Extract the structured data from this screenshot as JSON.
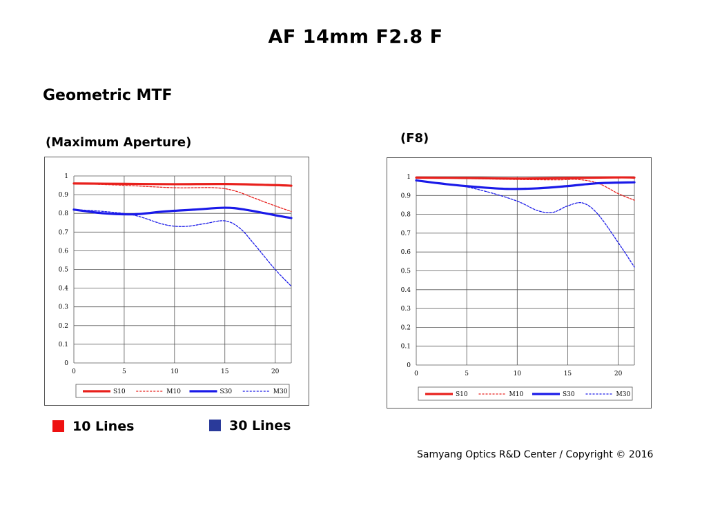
{
  "title": "AF 14mm F2.8 F",
  "subtitle": "Geometric MTF",
  "chart_data": [
    {
      "type": "line",
      "title": "(Maximum Aperture)",
      "xlim": [
        0,
        21.6
      ],
      "ylim": [
        0,
        1
      ],
      "xticks": [
        0,
        5,
        10,
        15,
        20
      ],
      "yticks": [
        "0",
        "0.1",
        "0.2",
        "0.3",
        "0.4",
        "0.5",
        "0.6",
        "0.7",
        "0.8",
        "0.9",
        "1"
      ],
      "grid": true,
      "legend_position": "bottom",
      "series": [
        {
          "name": "S10",
          "color": "#e8201c",
          "style": "solid",
          "x": [
            0,
            5,
            10,
            15,
            20,
            21.6
          ],
          "y": [
            0.96,
            0.958,
            0.956,
            0.957,
            0.951,
            0.948
          ]
        },
        {
          "name": "M10",
          "color": "#e8201c",
          "style": "dashed",
          "x": [
            0,
            5,
            10,
            14,
            16,
            18,
            20,
            21.6
          ],
          "y": [
            0.96,
            0.95,
            0.937,
            0.937,
            0.92,
            0.88,
            0.84,
            0.81
          ]
        },
        {
          "name": "S30",
          "color": "#1a1ae8",
          "style": "solid",
          "x": [
            0,
            3,
            6,
            9,
            12,
            15,
            17,
            20,
            21.6
          ],
          "y": [
            0.82,
            0.8,
            0.795,
            0.81,
            0.82,
            0.83,
            0.82,
            0.79,
            0.775
          ]
        },
        {
          "name": "M30",
          "color": "#1a1ae8",
          "style": "dashed",
          "x": [
            0,
            3,
            6,
            9,
            11,
            13,
            15,
            16.5,
            18,
            20,
            21.6
          ],
          "y": [
            0.82,
            0.81,
            0.79,
            0.74,
            0.73,
            0.745,
            0.76,
            0.72,
            0.63,
            0.5,
            0.41
          ]
        }
      ]
    },
    {
      "type": "line",
      "title": "(F8)",
      "xlim": [
        0,
        21.6
      ],
      "ylim": [
        0,
        1
      ],
      "xticks": [
        0,
        5,
        10,
        15,
        20
      ],
      "yticks": [
        "0",
        "0.1",
        "0.2",
        "0.3",
        "0.4",
        "0.5",
        "0.6",
        "0.7",
        "0.8",
        "0.9",
        "1"
      ],
      "grid": true,
      "legend_position": "bottom",
      "series": [
        {
          "name": "S10",
          "color": "#e8201c",
          "style": "solid",
          "x": [
            0,
            5,
            10,
            15,
            20,
            21.6
          ],
          "y": [
            0.995,
            0.993,
            0.99,
            0.993,
            0.996,
            0.995
          ]
        },
        {
          "name": "M10",
          "color": "#e8201c",
          "style": "dashed",
          "x": [
            0,
            5,
            10,
            14,
            16,
            18,
            20,
            21.6
          ],
          "y": [
            0.995,
            0.99,
            0.985,
            0.983,
            0.985,
            0.965,
            0.91,
            0.875
          ]
        },
        {
          "name": "S30",
          "color": "#1a1ae8",
          "style": "solid",
          "x": [
            0,
            3,
            6,
            9,
            12,
            15,
            18,
            21.6
          ],
          "y": [
            0.98,
            0.96,
            0.945,
            0.935,
            0.938,
            0.95,
            0.965,
            0.97
          ]
        },
        {
          "name": "M30",
          "color": "#1a1ae8",
          "style": "dashed",
          "x": [
            0,
            4,
            7,
            10,
            12,
            13.5,
            15,
            16.5,
            18,
            20,
            21.6
          ],
          "y": [
            0.98,
            0.955,
            0.92,
            0.87,
            0.82,
            0.81,
            0.845,
            0.86,
            0.8,
            0.65,
            0.52
          ]
        }
      ]
    }
  ],
  "legend_keys": [
    {
      "label": "10 Lines",
      "color": "#ee1111"
    },
    {
      "label": "30  Lines",
      "color": "#2a3a9a"
    }
  ],
  "copyright": "Samyang Optics R&D Center / Copyright © 2016"
}
